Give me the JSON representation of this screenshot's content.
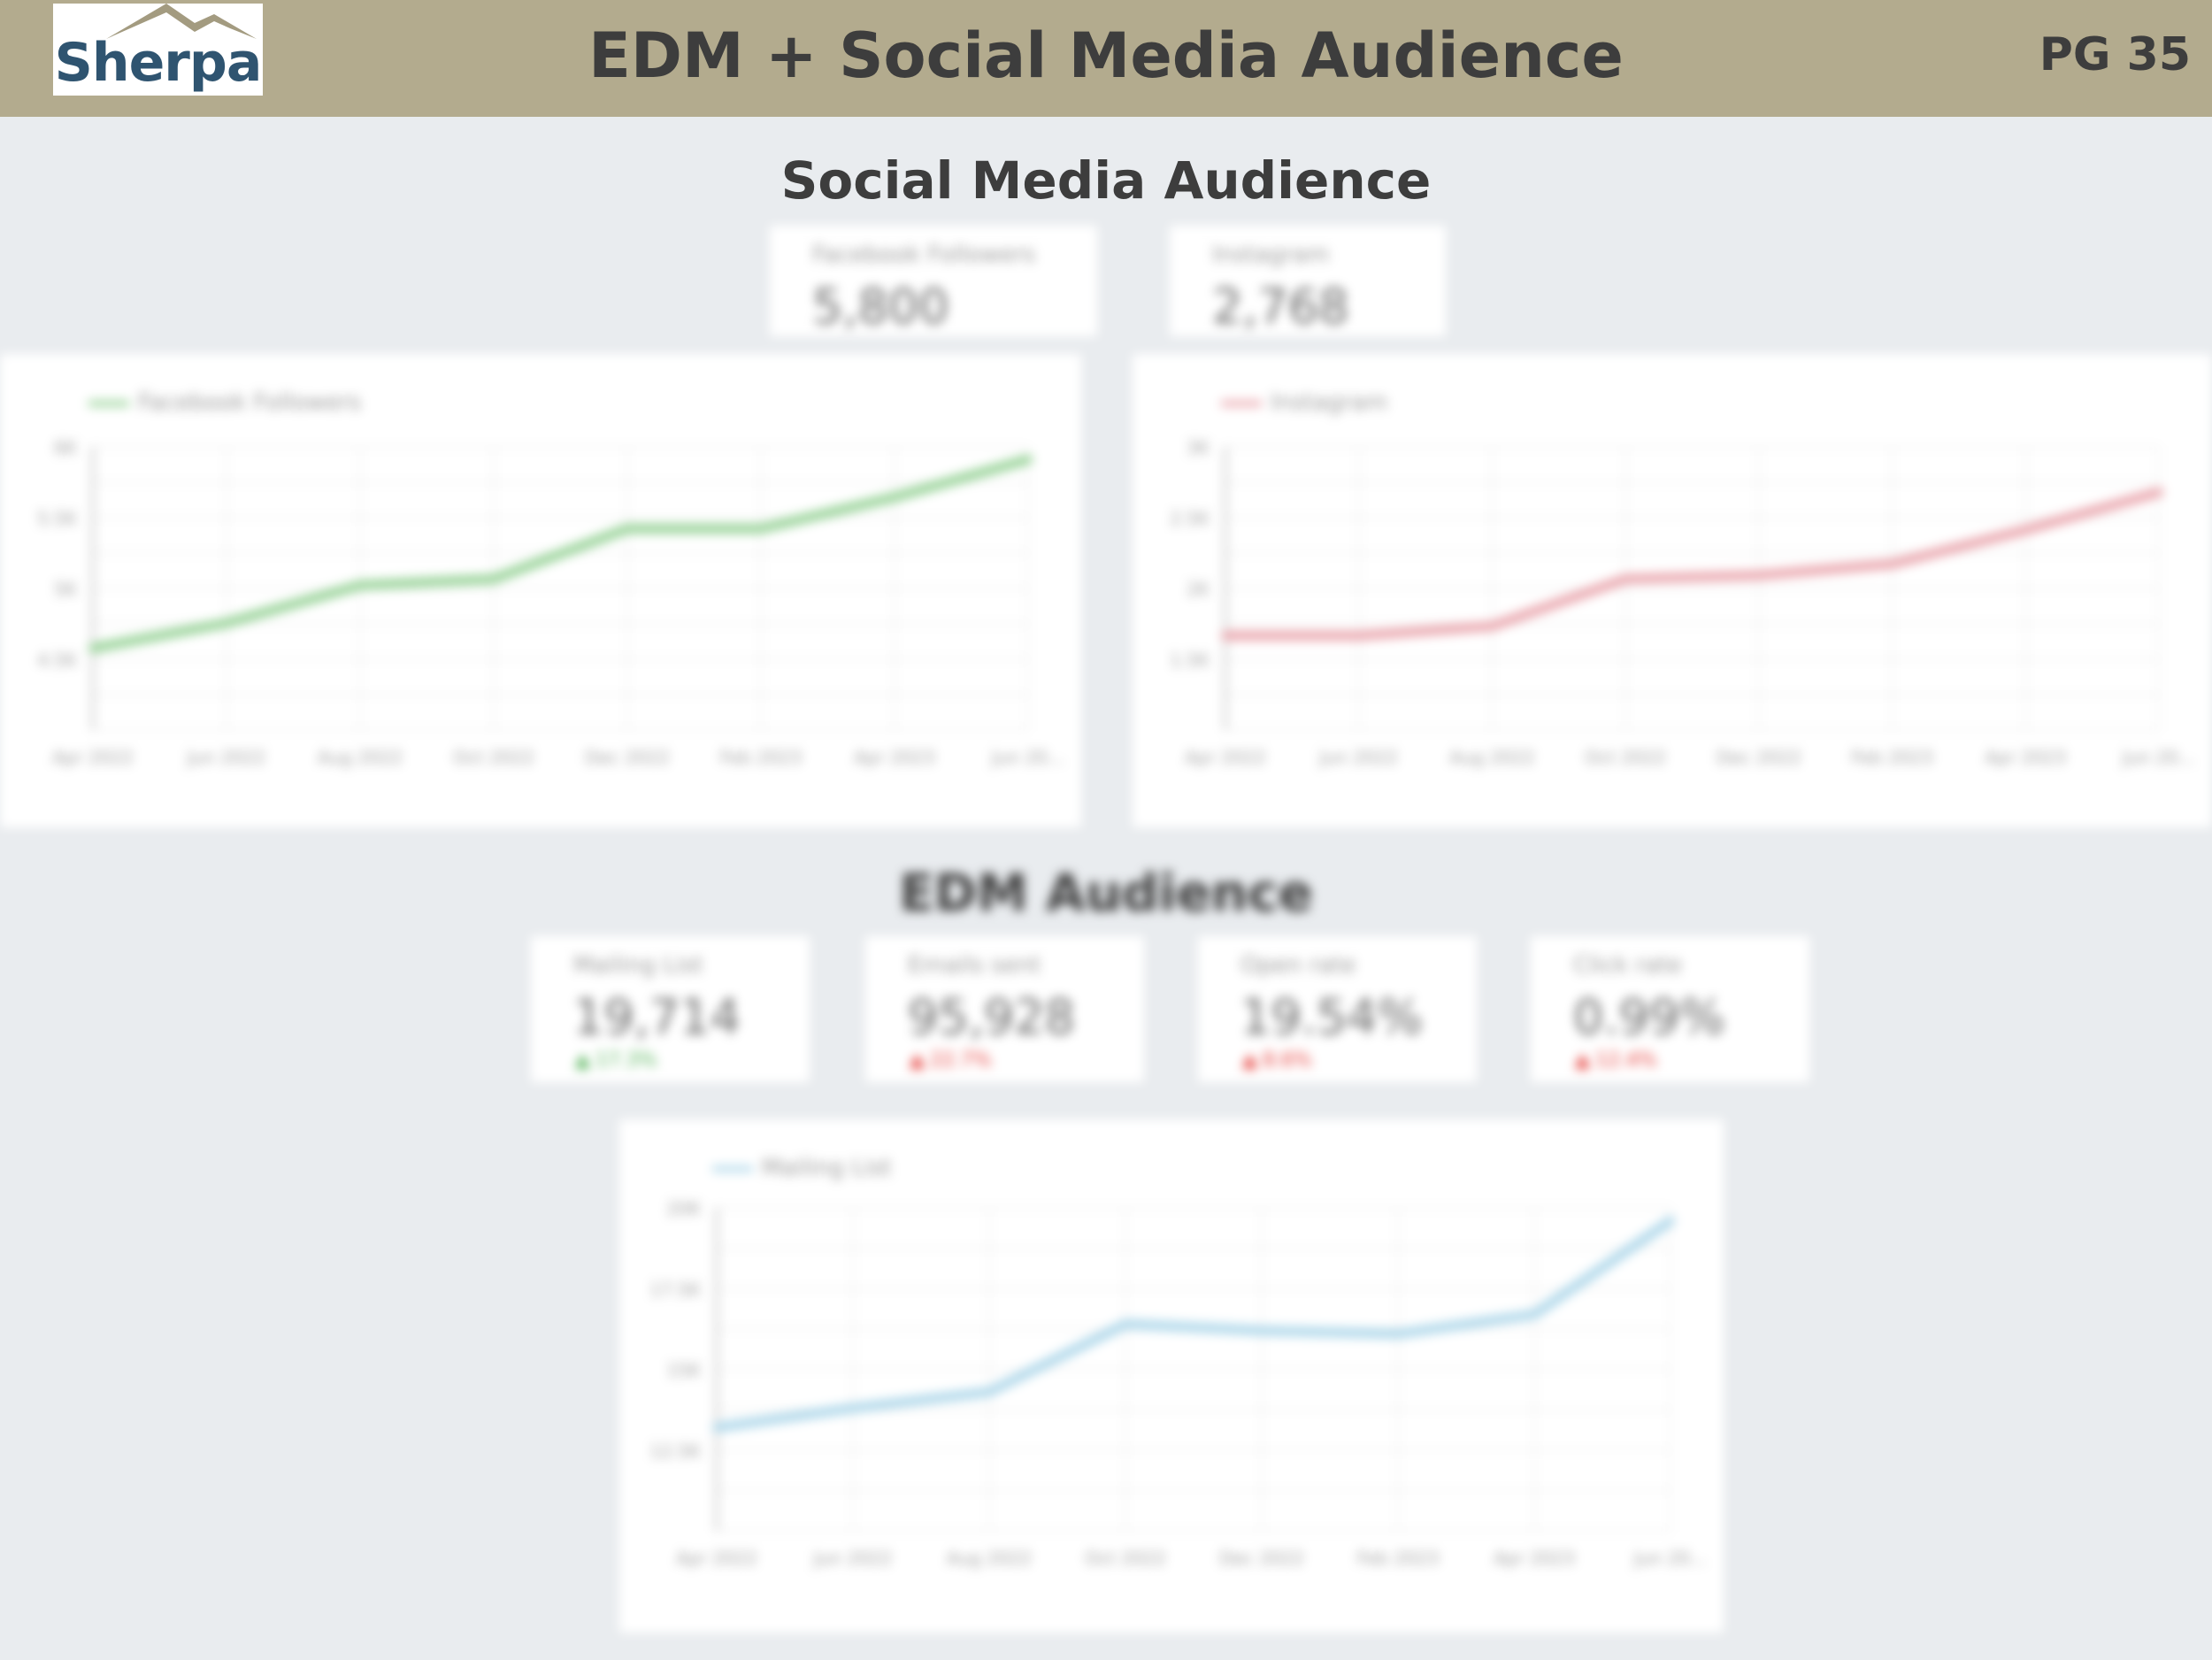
{
  "header": {
    "logo_text": "Sherpa",
    "title": "EDM + Social Media Audience",
    "page": "PG 35"
  },
  "social": {
    "title": "Social Media Audience",
    "kpis": [
      {
        "label": "Facebook Followers",
        "value": "5,800"
      },
      {
        "label": "Instagram",
        "value": "2,768"
      }
    ]
  },
  "edm": {
    "title": "EDM Audience",
    "kpis": [
      {
        "label": "Mailing List",
        "value": "19,714",
        "change": "17.3%",
        "change_color": "#4caf50"
      },
      {
        "label": "Emails sent",
        "value": "95,928",
        "change": "22.7%",
        "change_color": "#e53935"
      },
      {
        "label": "Open rate",
        "value": "19.54%",
        "change": "8.6%",
        "change_color": "#e53935"
      },
      {
        "label": "Click rate",
        "value": "0.99%",
        "change": "12.4%",
        "change_color": "#e53935"
      }
    ]
  },
  "chart_data": [
    {
      "type": "line",
      "title": "",
      "series": [
        {
          "name": "Facebook Followers",
          "color": "#8fcf8f",
          "values": [
            4400,
            4600,
            4900,
            4950,
            5350,
            5350,
            5600,
            5900
          ]
        }
      ],
      "categories": [
        "Apr 2022",
        "Jun 2022",
        "Aug 2022",
        "Oct 2022",
        "Dec 2022",
        "Feb 2023",
        "Apr 2023",
        "Jun 20..."
      ],
      "ylim": [
        3750,
        6000
      ],
      "yticks": [
        "6K",
        "5.5K",
        "5K",
        "4.5K"
      ],
      "grid": true,
      "legend": "top-left"
    },
    {
      "type": "line",
      "title": "",
      "series": [
        {
          "name": "Instagram",
          "color": "#e8a0a8",
          "values": [
            2000,
            2000,
            2050,
            2300,
            2320,
            2380,
            2560,
            2760
          ]
        }
      ],
      "categories": [
        "Apr 2022",
        "Jun 2022",
        "Aug 2022",
        "Oct 2022",
        "Dec 2022",
        "Feb 2023",
        "Apr 2023",
        "Jun 20..."
      ],
      "ylim": [
        1500,
        3000
      ],
      "yticks": [
        "3K",
        "2.5K",
        "2K",
        "1.5K"
      ],
      "grid": true,
      "legend": "top-left"
    },
    {
      "type": "line",
      "title": "",
      "series": [
        {
          "name": "Mailing List",
          "color": "#a8d4e8",
          "values": [
            13200,
            13800,
            14300,
            16400,
            16200,
            16100,
            16700,
            19600
          ]
        }
      ],
      "categories": [
        "Apr 2022",
        "Jun 2022",
        "Aug 2022",
        "Oct 2022",
        "Dec 2022",
        "Feb 2023",
        "Apr 2023",
        "Jun 20..."
      ],
      "ylim": [
        10000,
        20000
      ],
      "yticks": [
        "20K",
        "17.5K",
        "15K",
        "12.5K"
      ],
      "grid": true,
      "legend": "top-left"
    }
  ]
}
